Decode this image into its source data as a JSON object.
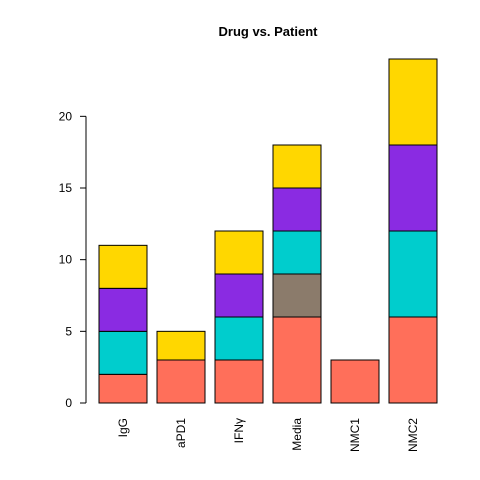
{
  "chart_data": {
    "type": "bar",
    "stacked": true,
    "title": "Drug vs. Patient",
    "xlabel": "",
    "ylabel": "",
    "categories": [
      "IgG",
      "aPD1",
      "IFNγ",
      "Media",
      "NMC1",
      "NMC2"
    ],
    "ylim": [
      0,
      24
    ],
    "yticks": [
      0,
      5,
      10,
      15,
      20
    ],
    "grid": false,
    "legend": "none",
    "series": [
      {
        "color": "#ff6f5a",
        "values": [
          2,
          3,
          3,
          6,
          3,
          6
        ]
      },
      {
        "color": "#8b7b6b",
        "values": [
          0,
          0,
          0,
          3,
          0,
          0
        ]
      },
      {
        "color": "#00cdcd",
        "values": [
          3,
          0,
          3,
          3,
          0,
          6
        ]
      },
      {
        "color": "#8a2be2",
        "values": [
          3,
          0,
          3,
          3,
          0,
          6
        ]
      },
      {
        "color": "#ffd700",
        "values": [
          3,
          2,
          3,
          3,
          0,
          6
        ]
      }
    ]
  }
}
